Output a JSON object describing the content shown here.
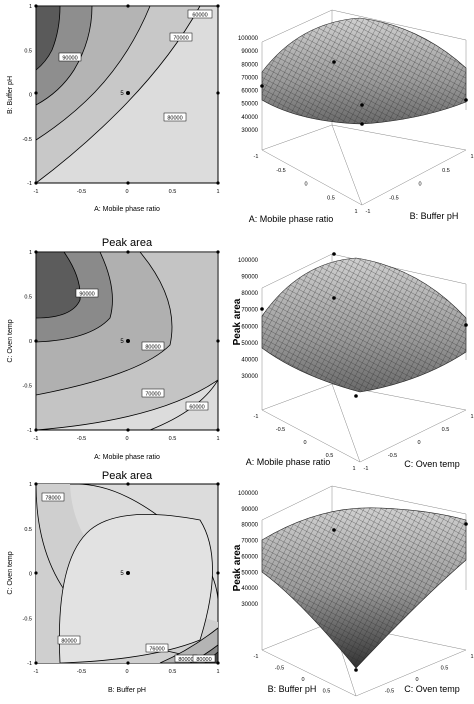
{
  "chart_data": [
    {
      "type": "contour",
      "title": "",
      "xlabel": "A: Mobile phase ratio",
      "ylabel": "B: Buffer pH",
      "x_ticks": [
        "-1",
        "-0.5",
        "0",
        "0.5",
        "1"
      ],
      "y_ticks": [
        "-1",
        "-0.5",
        "0",
        "0.5",
        "1"
      ],
      "xlim": [
        -1,
        1
      ],
      "ylim": [
        -1,
        1
      ],
      "contour_labels": [
        "90000",
        "80000",
        "70000",
        "60000"
      ],
      "center_label": "5",
      "center_point": [
        0,
        0
      ]
    },
    {
      "type": "surface",
      "title": "",
      "xlabel": "A: Mobile phase ratio",
      "ylabel": "B: Buffer pH",
      "zlabel": "",
      "z_ticks": [
        "30000",
        "40000",
        "50000",
        "60000",
        "70000",
        "80000",
        "90000",
        "100000"
      ],
      "x_ticks": [
        "-1",
        "-0.5",
        "0",
        "0.5",
        "1"
      ],
      "y_ticks": [
        "-1",
        "-0.5",
        "0",
        "0.5",
        "1"
      ],
      "zlim": [
        30000,
        100000
      ]
    },
    {
      "type": "contour",
      "title": "Peak area",
      "xlabel": "A: Mobile phase ratio",
      "ylabel": "C: Oven temp",
      "x_ticks": [
        "-1",
        "-0.5",
        "0",
        "0.5",
        "1"
      ],
      "y_ticks": [
        "-1",
        "-0.5",
        "0",
        "0.5",
        "1"
      ],
      "xlim": [
        -1,
        1
      ],
      "ylim": [
        -1,
        1
      ],
      "contour_labels": [
        "90000",
        "80000",
        "70000",
        "60000"
      ],
      "center_label": "5",
      "center_point": [
        0,
        0
      ]
    },
    {
      "type": "surface",
      "title": "",
      "xlabel": "A: Mobile phase ratio",
      "ylabel": "C: Oven temp",
      "zlabel": "Peak area",
      "z_ticks": [
        "30000",
        "40000",
        "50000",
        "60000",
        "70000",
        "80000",
        "90000",
        "100000"
      ],
      "x_ticks": [
        "-1",
        "-0.5",
        "0",
        "0.5",
        "1"
      ],
      "y_ticks": [
        "-1",
        "-0.5",
        "0",
        "0.5",
        "1"
      ],
      "zlim": [
        30000,
        100000
      ]
    },
    {
      "type": "contour",
      "title": "Peak area",
      "xlabel": "B: Buffer pH",
      "ylabel": "C: Oven temp",
      "x_ticks": [
        "-1",
        "-0.5",
        "0",
        "0.5",
        "1"
      ],
      "y_ticks": [
        "-1",
        "-0.5",
        "0",
        "0.5",
        "1"
      ],
      "xlim": [
        -1,
        1
      ],
      "ylim": [
        -1,
        1
      ],
      "contour_labels": [
        "78000",
        "80000",
        "76000",
        "80000",
        "80000"
      ],
      "center_label": "5",
      "center_point": [
        0,
        0
      ]
    },
    {
      "type": "surface",
      "title": "",
      "xlabel": "B: Buffer pH",
      "ylabel": "C: Oven temp",
      "zlabel": "Peak area",
      "z_ticks": [
        "30000",
        "40000",
        "50000",
        "60000",
        "70000",
        "80000",
        "90000",
        "100000"
      ],
      "x_ticks": [
        "-1",
        "-0.5",
        "0",
        "0.5",
        "1"
      ],
      "y_ticks": [
        "-1",
        "-0.5",
        "0",
        "0.5",
        "1"
      ],
      "zlim": [
        30000,
        100000
      ]
    }
  ]
}
